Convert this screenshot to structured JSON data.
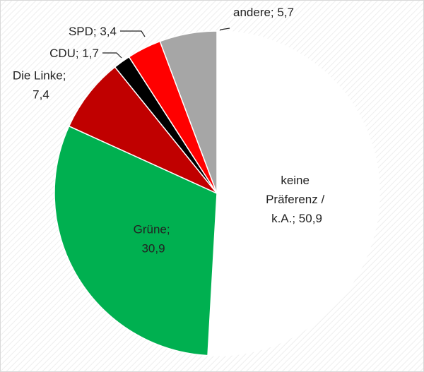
{
  "chart_data": {
    "type": "pie",
    "values": [
      50.9,
      30.9,
      7.4,
      1.7,
      3.4,
      5.7
    ],
    "value_labels": [
      "keine Präferenz / k.A.; 50,9",
      "Grüne; 30,9",
      "Die Linke; 7,4",
      "CDU; 1,7",
      "SPD; 3,4",
      "andere; 5,7"
    ],
    "colors": [
      "#ffffff",
      "#00b050",
      "#c00000",
      "#000000",
      "#ff0000",
      "#a6a6a6"
    ]
  }
}
